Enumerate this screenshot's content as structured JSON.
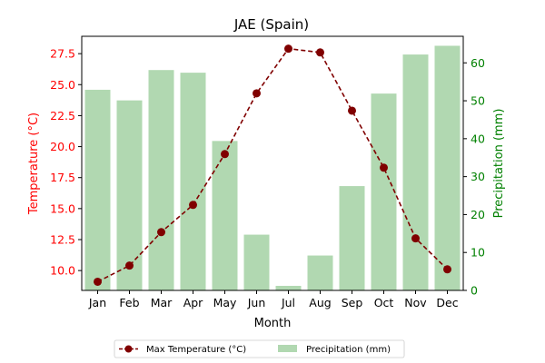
{
  "chart_data": {
    "type": "bar+line",
    "title": "JAE (Spain)",
    "xlabel": "Month",
    "categories": [
      "Jan",
      "Feb",
      "Mar",
      "Apr",
      "May",
      "Jun",
      "Jul",
      "Aug",
      "Sep",
      "Oct",
      "Nov",
      "Dec"
    ],
    "left_axis": {
      "label": "Temperature (°C)",
      "color": "#ff0000",
      "ylim": [
        8.4,
        28.9
      ],
      "ticks": [
        "10.0",
        "12.5",
        "15.0",
        "17.5",
        "20.0",
        "22.5",
        "25.0",
        "27.5"
      ]
    },
    "right_axis": {
      "label": "Precipitation (mm)",
      "color": "#008000",
      "ylim": [
        0,
        67
      ],
      "ticks": [
        "0",
        "10",
        "20",
        "30",
        "40",
        "50",
        "60"
      ]
    },
    "series": [
      {
        "name": "Max Temperature (°C)",
        "kind": "line",
        "axis": "left",
        "color": "#800000",
        "values": [
          9.1,
          10.4,
          13.1,
          15.3,
          19.4,
          24.3,
          27.9,
          27.6,
          22.9,
          18.3,
          12.6,
          10.1
        ]
      },
      {
        "name": "Precipitation (mm)",
        "kind": "bar",
        "axis": "right",
        "color": "#b1d8b1",
        "values": [
          52.9,
          50.1,
          58.1,
          57.4,
          39.4,
          14.7,
          1.2,
          9.2,
          27.5,
          51.9,
          62.2,
          64.5
        ]
      }
    ],
    "legend_position": "bottom-center",
    "grid": false
  }
}
